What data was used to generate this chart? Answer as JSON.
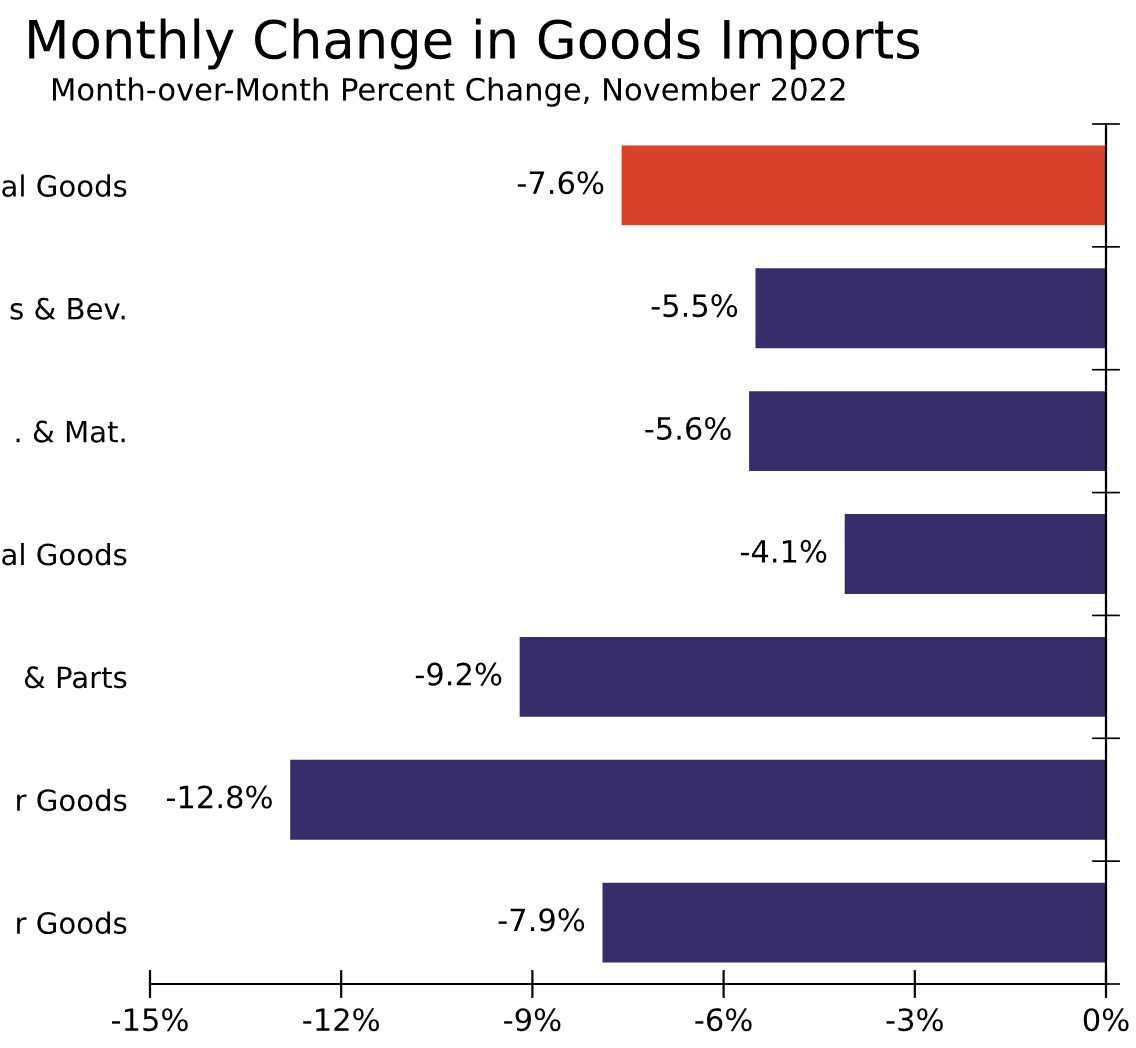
{
  "chart_data": {
    "type": "bar",
    "orientation": "horizontal",
    "title": "Monthly Change in Goods Imports",
    "subtitle": "Month-over-Month Percent Change, November 2022",
    "categories": [
      "al Goods",
      "s & Bev.",
      ". & Mat.",
      "al Goods",
      "& Parts",
      "r Goods",
      "r Goods"
    ],
    "values": [
      -7.6,
      -5.5,
      -5.6,
      -4.1,
      -9.2,
      -12.8,
      -7.9
    ],
    "colors": [
      "#d9412b",
      "#372d6b",
      "#372d6b",
      "#372d6b",
      "#372d6b",
      "#372d6b",
      "#372d6b"
    ],
    "value_labels": [
      "-7.6%",
      "-5.5%",
      "-5.6%",
      "-4.1%",
      "-9.2%",
      "-12.8%",
      "-7.9%"
    ],
    "xlim": [
      -15,
      0
    ],
    "xticks": [
      {
        "value": -15,
        "label": "-15%"
      },
      {
        "value": -12,
        "label": "-12%"
      },
      {
        "value": -9,
        "label": "-9%"
      },
      {
        "value": -6,
        "label": "-6%"
      },
      {
        "value": -3,
        "label": "-3%"
      },
      {
        "value": 0,
        "label": "0%"
      }
    ],
    "grid": false,
    "legend": false
  }
}
